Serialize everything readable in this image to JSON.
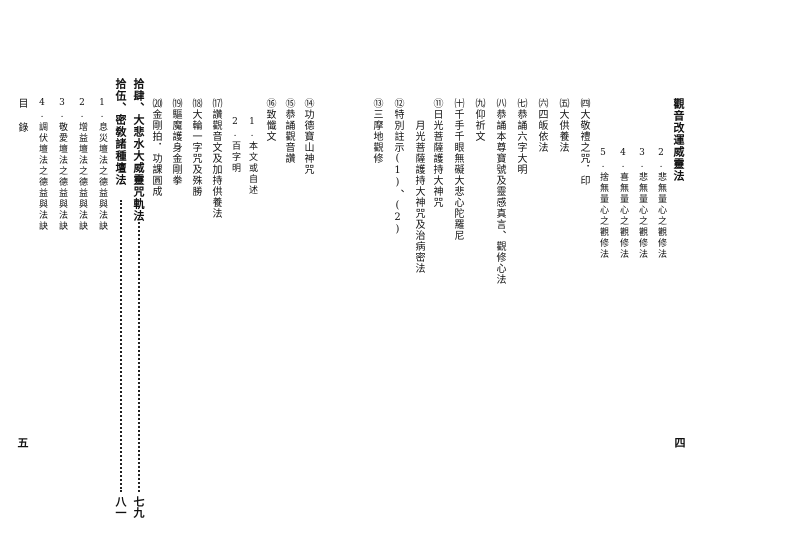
{
  "right_page": {
    "section_title": "觀音改運威靈法",
    "items": [
      "2.悲無量心之觀修法",
      "3.悲無量心之觀修法",
      "4.喜無量心之觀修法",
      "5.捨無量心之觀修法",
      "㈣大敬禮之咒．印",
      "㈤大供養法",
      "㈥四皈依法",
      "㈦恭誦六字大明",
      "㈧恭誦本尊寶號及靈感真言、觀修心法",
      "㈨仰祈文",
      "㈩千手千眼無礙大悲心陀羅尼",
      "⑪日光菩薩護持大神咒",
      "月光菩薩護持大神咒及治病密法",
      "⑫特別註示(1)、(2)",
      "⑬三摩地觀修"
    ],
    "page_number": "四"
  },
  "left_page": {
    "items": [
      "⑭功德寶山神咒",
      "⑮恭誦觀音讚",
      "⑯致懺文",
      "1.本文或自述",
      "2.百字明",
      "⒄讚觀音文及加持供養法",
      "⒅大輪一字咒及殊勝",
      "⒆驅魔護身金剛拳",
      "⒇金剛拍．功課圓成"
    ],
    "heading_1": "拾肆、大悲水大威靈咒軌法",
    "heading_1_page": "七九",
    "heading_2": "拾伍、密敎諸種壇法",
    "heading_2_page": "八一",
    "subitems": [
      "1.息災壇法之德益與法訣",
      "2.增益壇法之德益與法訣",
      "3.敬愛壇法之德益與法訣",
      "4.調伏壇法之德益與法訣"
    ],
    "side_label": "目錄",
    "page_number": "五"
  }
}
